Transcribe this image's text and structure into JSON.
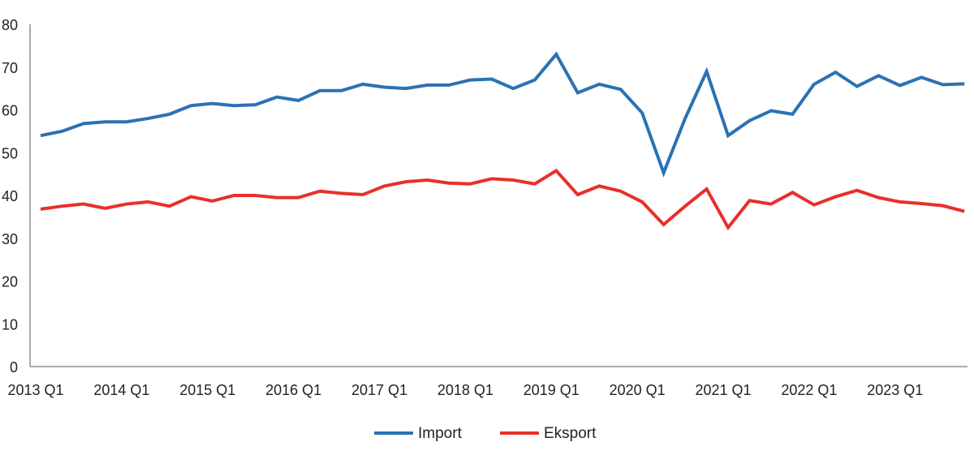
{
  "chart_data": {
    "type": "line",
    "title": "",
    "xlabel": "",
    "ylabel": "",
    "ylim": [
      0,
      80
    ],
    "yticks": [
      0,
      10,
      20,
      30,
      40,
      50,
      60,
      70,
      80
    ],
    "xtick_labels": [
      "2013 Q1",
      "2014 Q1",
      "2015 Q1",
      "2016 Q1",
      "2017 Q1",
      "2018 Q1",
      "2019 Q1",
      "2020 Q1",
      "2021 Q1",
      "2022 Q1",
      "2023 Q1"
    ],
    "grid": false,
    "legend_position": "bottom-center",
    "x_count": 44,
    "series": [
      {
        "name": "Import",
        "color": "#2b72b3",
        "values": [
          54,
          55,
          56.8,
          57.2,
          57.2,
          58,
          59,
          61,
          61.5,
          61,
          61.2,
          63,
          62.2,
          64.5,
          64.5,
          66,
          65.3,
          65,
          65.8,
          65.8,
          67,
          67.2,
          65,
          67,
          73,
          64,
          66,
          64.8,
          59.3,
          45.3,
          58,
          69,
          54,
          57.5,
          59.8,
          59,
          66,
          68.8,
          65.5,
          68,
          65.7,
          67.6,
          65.9,
          66.1
        ]
      },
      {
        "name": "Eksport",
        "color": "#e8302a",
        "values": [
          36.8,
          37.5,
          38,
          37,
          38,
          38.5,
          37.5,
          39.7,
          38.7,
          40,
          40,
          39.5,
          39.5,
          41,
          40.5,
          40.2,
          42.2,
          43.2,
          43.6,
          42.9,
          42.7,
          43.9,
          43.6,
          42.7,
          45.8,
          40.2,
          42.2,
          41,
          38.5,
          33.2,
          37.5,
          41.5,
          32.5,
          38.8,
          38,
          40.7,
          37.8,
          39.7,
          41.2,
          39.5,
          38.5,
          38.1,
          37.6,
          36.3
        ]
      }
    ]
  }
}
